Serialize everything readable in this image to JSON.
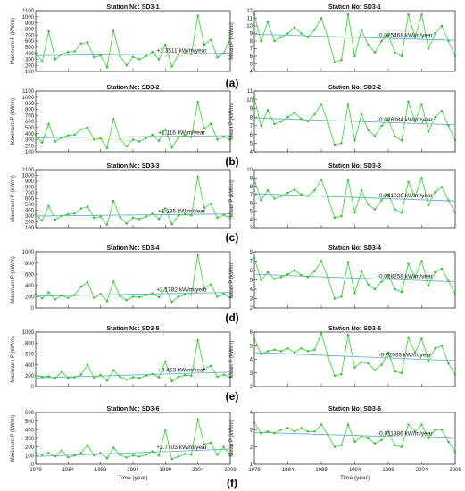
{
  "figure": {
    "panel_labels": [
      "(a)",
      "(b)",
      "(c)",
      "(d)",
      "(e)",
      "(f)"
    ]
  },
  "styles": {
    "line_color": "#3ddc3d",
    "marker_color": "#22c322",
    "trend_color": "#6aaed6",
    "axis_color": "#333333"
  },
  "chart_data": [
    {
      "type": "line",
      "panel": "(a)",
      "title": "Station No: SD3-1",
      "xlabel": "",
      "ylabel": "Maximum P (kW/m)",
      "ylim": [
        100,
        1100
      ],
      "yticks": [
        100,
        200,
        300,
        400,
        500,
        600,
        700,
        800,
        900,
        1000,
        1100
      ],
      "xlim": [
        1979,
        2009
      ],
      "x": [
        1979,
        1980,
        1981,
        1982,
        1983,
        1984,
        1985,
        1986,
        1987,
        1988,
        1989,
        1990,
        1991,
        1992,
        1993,
        1994,
        1995,
        1996,
        1997,
        1998,
        1999,
        2000,
        2001,
        2002,
        2003,
        2004,
        2005,
        2006,
        2007,
        2008,
        2009
      ],
      "series": [
        {
          "name": "",
          "values": [
            400,
            260,
            760,
            300,
            380,
            420,
            430,
            560,
            580,
            330,
            360,
            170,
            770,
            350,
            200,
            340,
            300,
            350,
            420,
            300,
            540,
            180,
            380,
            400,
            380,
            1020,
            540,
            620,
            330,
            400,
            650
          ]
        }
      ],
      "trend": {
        "label": "+1.3511 kW/m/year",
        "start": 360,
        "end": 400
      }
    },
    {
      "type": "line",
      "panel": "(a)",
      "title": "Station No: SD3-1",
      "xlabel": "",
      "ylabel": "Mean P (kW/m)",
      "ylim": [
        4,
        12
      ],
      "yticks": [
        4,
        5,
        6,
        7,
        8,
        9,
        10,
        11,
        12
      ],
      "xlim": [
        1979,
        2009
      ],
      "x": [
        1979,
        1980,
        1981,
        1982,
        1983,
        1984,
        1985,
        1986,
        1987,
        1988,
        1989,
        1990,
        1991,
        1992,
        1993,
        1994,
        1995,
        1996,
        1997,
        1998,
        1999,
        2000,
        2001,
        2002,
        2003,
        2004,
        2005,
        2006,
        2007,
        2008,
        2009
      ],
      "series": [
        {
          "name": "",
          "values": [
            11.5,
            8,
            10.5,
            8,
            8.5,
            9,
            9.8,
            9,
            8.5,
            9.5,
            11,
            8.5,
            5.2,
            5.5,
            11.5,
            6,
            9.5,
            7.5,
            6.5,
            8,
            8.8,
            6.5,
            6,
            11.5,
            8.5,
            11.5,
            7,
            9,
            10,
            8,
            6
          ]
        }
      ],
      "trend": {
        "label": "-0.025468 kW/m/year",
        "start": 8.9,
        "end": 8.1
      }
    },
    {
      "type": "line",
      "panel": "(b)",
      "title": "Station No: SD3-2",
      "xlabel": "",
      "ylabel": "Maximum P (kW/m)",
      "ylim": [
        100,
        1100
      ],
      "yticks": [
        100,
        200,
        300,
        400,
        500,
        600,
        700,
        800,
        900,
        1000,
        1100
      ],
      "xlim": [
        1979,
        2009
      ],
      "x": [
        1979,
        1980,
        1981,
        1982,
        1983,
        1984,
        1985,
        1986,
        1987,
        1988,
        1989,
        1990,
        1991,
        1992,
        1993,
        1994,
        1995,
        1996,
        1997,
        1998,
        1999,
        2000,
        2001,
        2002,
        2003,
        2004,
        2005,
        2006,
        2007,
        2008,
        2009
      ],
      "series": [
        {
          "name": "",
          "values": [
            380,
            250,
            560,
            270,
            330,
            370,
            380,
            470,
            500,
            300,
            320,
            160,
            640,
            310,
            190,
            300,
            270,
            320,
            380,
            280,
            470,
            170,
            340,
            370,
            340,
            920,
            480,
            560,
            300,
            350,
            290
          ]
        }
      ],
      "trend": {
        "label": "+1.116 kW/m/year",
        "start": 330,
        "end": 365
      }
    },
    {
      "type": "line",
      "panel": "(b)",
      "title": "Station No: SD3-2",
      "xlabel": "",
      "ylabel": "Mean P (kW/m)",
      "ylim": [
        4,
        11
      ],
      "yticks": [
        4,
        5,
        6,
        7,
        8,
        9,
        10,
        11
      ],
      "xlim": [
        1979,
        2009
      ],
      "x": [
        1979,
        1980,
        1981,
        1982,
        1983,
        1984,
        1985,
        1986,
        1987,
        1988,
        1989,
        1990,
        1991,
        1992,
        1993,
        1994,
        1995,
        1996,
        1997,
        1998,
        1999,
        2000,
        2001,
        2002,
        2003,
        2004,
        2005,
        2006,
        2007,
        2008,
        2009
      ],
      "series": [
        {
          "name": "",
          "values": [
            10.2,
            7,
            8.8,
            7.2,
            7.5,
            8,
            8.5,
            7.8,
            7.5,
            8.3,
            9.5,
            7.3,
            4.8,
            5,
            9.5,
            5.3,
            8.3,
            6.5,
            5.8,
            7,
            7.7,
            5.8,
            5.3,
            9.8,
            7.5,
            9.5,
            6.3,
            8,
            8.7,
            7,
            5.3
          ]
        }
      ],
      "trend": {
        "label": "-0.028384 kW/m/year",
        "start": 7.9,
        "end": 7.1
      }
    },
    {
      "type": "line",
      "panel": "(c)",
      "title": "Station No: SD3-3",
      "xlabel": "",
      "ylabel": "Maximum P (kW/m)",
      "ylim": [
        100,
        1100
      ],
      "yticks": [
        100,
        200,
        300,
        400,
        500,
        600,
        700,
        800,
        900,
        1000,
        1100
      ],
      "xlim": [
        1979,
        2009
      ],
      "x": [
        1979,
        1980,
        1981,
        1982,
        1983,
        1984,
        1985,
        1986,
        1987,
        1988,
        1989,
        1990,
        1991,
        1992,
        1993,
        1994,
        1995,
        1996,
        1997,
        1998,
        1999,
        2000,
        2001,
        2002,
        2003,
        2004,
        2005,
        2006,
        2007,
        2008,
        2009
      ],
      "series": [
        {
          "name": "",
          "values": [
            330,
            220,
            470,
            240,
            300,
            330,
            340,
            430,
            460,
            270,
            290,
            150,
            560,
            280,
            170,
            270,
            250,
            290,
            340,
            250,
            430,
            160,
            310,
            330,
            310,
            980,
            440,
            510,
            270,
            320,
            260
          ]
        }
      ],
      "trend": {
        "label": "+1.195 kW/m/year",
        "start": 300,
        "end": 335
      }
    },
    {
      "type": "line",
      "panel": "(c)",
      "title": "Station No: SD3-3",
      "xlabel": "",
      "ylabel": "Mean P (kW/m)",
      "ylim": [
        3,
        10
      ],
      "yticks": [
        3,
        4,
        5,
        6,
        7,
        8,
        9,
        10
      ],
      "xlim": [
        1979,
        2009
      ],
      "x": [
        1979,
        1980,
        1981,
        1982,
        1983,
        1984,
        1985,
        1986,
        1987,
        1988,
        1989,
        1990,
        1991,
        1992,
        1993,
        1994,
        1995,
        1996,
        1997,
        1998,
        1999,
        2000,
        2001,
        2002,
        2003,
        2004,
        2005,
        2006,
        2007,
        2008,
        2009
      ],
      "series": [
        {
          "name": "",
          "values": [
            8.8,
            6.3,
            7.5,
            6.5,
            6.8,
            7.2,
            7.6,
            7,
            6.8,
            7.5,
            8.8,
            6.6,
            4.2,
            4.4,
            8.8,
            4.8,
            7.5,
            5.8,
            5.2,
            6.3,
            7,
            5.2,
            4.8,
            8.5,
            6.8,
            9,
            5.7,
            7.3,
            7.9,
            6.3,
            4.8
          ]
        }
      ],
      "trend": {
        "label": "-0.031029 kW/m/year",
        "start": 7.1,
        "end": 6.2
      }
    },
    {
      "type": "line",
      "panel": "(d)",
      "title": "Station No: SD3-4",
      "xlabel": "",
      "ylabel": "Maximum P (kW/m)",
      "ylim": [
        0,
        1000
      ],
      "yticks": [
        0,
        200,
        400,
        600,
        800,
        1000
      ],
      "xlim": [
        1979,
        2009
      ],
      "x": [
        1979,
        1980,
        1981,
        1982,
        1983,
        1984,
        1985,
        1986,
        1987,
        1988,
        1989,
        1990,
        1991,
        1992,
        1993,
        1994,
        1995,
        1996,
        1997,
        1998,
        1999,
        2000,
        2001,
        2002,
        2003,
        2004,
        2005,
        2006,
        2007,
        2008,
        2009
      ],
      "series": [
        {
          "name": "",
          "values": [
            250,
            170,
            280,
            150,
            220,
            180,
            230,
            380,
            460,
            180,
            250,
            120,
            470,
            210,
            140,
            200,
            190,
            230,
            260,
            190,
            350,
            110,
            200,
            240,
            230,
            940,
            350,
            420,
            200,
            250,
            190
          ]
        }
      ],
      "trend": {
        "label": "+2.1782 kW/m/year",
        "start": 210,
        "end": 275
      }
    },
    {
      "type": "line",
      "panel": "(d)",
      "title": "Station No: SD3-4",
      "xlabel": "",
      "ylabel": "Mean P (kW/m)",
      "ylim": [
        2,
        8
      ],
      "yticks": [
        2,
        3,
        4,
        5,
        6,
        7,
        8
      ],
      "xlim": [
        1979,
        2009
      ],
      "x": [
        1979,
        1980,
        1981,
        1982,
        1983,
        1984,
        1985,
        1986,
        1987,
        1988,
        1989,
        1990,
        1991,
        1992,
        1993,
        1994,
        1995,
        1996,
        1997,
        1998,
        1999,
        2000,
        2001,
        2002,
        2003,
        2004,
        2005,
        2006,
        2007,
        2008,
        2009
      ],
      "series": [
        {
          "name": "",
          "values": [
            7.3,
            5,
            5.8,
            5.1,
            5.3,
            5.6,
            6,
            5.5,
            5.3,
            5.9,
            7,
            5.2,
            3,
            3.2,
            6.9,
            3.6,
            5.9,
            4.5,
            4,
            4.8,
            5.5,
            4,
            3.7,
            6.7,
            5.3,
            7,
            4.4,
            5.8,
            6.2,
            4.9,
            3.5
          ]
        }
      ],
      "trend": {
        "label": "-0.028258 kW/m/year",
        "start": 5.6,
        "end": 4.8
      }
    },
    {
      "type": "line",
      "panel": "(e)",
      "title": "Station No: SD3-5",
      "xlabel": "",
      "ylabel": "Maximum P (kW/m)",
      "ylim": [
        0,
        1000
      ],
      "yticks": [
        0,
        200,
        400,
        600,
        800,
        1000
      ],
      "xlim": [
        1979,
        2009
      ],
      "x": [
        1979,
        1980,
        1981,
        1982,
        1983,
        1984,
        1985,
        1986,
        1987,
        1988,
        1989,
        1990,
        1991,
        1992,
        1993,
        1994,
        1995,
        1996,
        1997,
        1998,
        1999,
        2000,
        2001,
        2002,
        2003,
        2004,
        2005,
        2006,
        2007,
        2008,
        2009
      ],
      "series": [
        {
          "name": "",
          "values": [
            200,
            180,
            190,
            150,
            270,
            160,
            170,
            220,
            400,
            160,
            210,
            110,
            300,
            180,
            130,
            170,
            160,
            200,
            230,
            170,
            460,
            100,
            180,
            210,
            200,
            850,
            320,
            380,
            180,
            220,
            170
          ]
        }
      ],
      "trend": {
        "label": "+3.453 kW/m/year",
        "start": 160,
        "end": 265
      }
    },
    {
      "type": "line",
      "panel": "(e)",
      "title": "Station No: SD3-5",
      "xlabel": "",
      "ylabel": "Mean P (kW/m)",
      "ylim": [
        2,
        6
      ],
      "yticks": [
        2,
        3,
        4,
        5,
        6
      ],
      "xlim": [
        1979,
        2009
      ],
      "x": [
        1979,
        1980,
        1981,
        1982,
        1983,
        1984,
        1985,
        1986,
        1987,
        1988,
        1989,
        1990,
        1991,
        1992,
        1993,
        1994,
        1995,
        1996,
        1997,
        1998,
        1999,
        2000,
        2001,
        2002,
        2003,
        2004,
        2005,
        2006,
        2007,
        2008,
        2009
      ],
      "series": [
        {
          "name": "",
          "values": [
            5.5,
            4.4,
            4.6,
            4.7,
            4.6,
            4.8,
            4.5,
            4.8,
            4.6,
            4.7,
            5.9,
            4.2,
            2.8,
            2.9,
            5.8,
            3.4,
            3.8,
            3.7,
            3.2,
            3.6,
            4.5,
            3.1,
            3,
            5.6,
            4.5,
            5.5,
            3.9,
            4.8,
            5,
            3.7,
            2.9
          ]
        }
      ],
      "trend": {
        "label": "-0.02033 kW/m/year",
        "start": 4.5,
        "end": 3.9
      }
    },
    {
      "type": "line",
      "panel": "(f)",
      "title": "Station No: SD3-6",
      "xlabel": "Time (year)",
      "ylabel": "Maximum P (kW/m)",
      "ylim": [
        0,
        600
      ],
      "yticks": [
        0,
        100,
        200,
        300,
        400,
        500,
        600
      ],
      "xlim": [
        1979,
        2009
      ],
      "x": [
        1979,
        1980,
        1981,
        1982,
        1983,
        1984,
        1985,
        1986,
        1987,
        1988,
        1989,
        1990,
        1991,
        1992,
        1993,
        1994,
        1995,
        1996,
        1997,
        1998,
        1999,
        2000,
        2001,
        2002,
        2003,
        2004,
        2005,
        2006,
        2007,
        2008,
        2009
      ],
      "series": [
        {
          "name": "",
          "values": [
            130,
            110,
            130,
            90,
            160,
            80,
            100,
            130,
            220,
            100,
            130,
            70,
            190,
            110,
            80,
            100,
            90,
            110,
            150,
            100,
            400,
            60,
            90,
            120,
            110,
            520,
            230,
            250,
            110,
            200,
            100
          ]
        }
      ],
      "trend": {
        "label": "+2.7703 kW/m/year",
        "start": 90,
        "end": 175
      }
    },
    {
      "type": "line",
      "panel": "(f)",
      "title": "Station No: SD3-6",
      "xlabel": "Time (year)",
      "ylabel": "Mean P (kW/m)",
      "ylim": [
        1,
        4
      ],
      "yticks": [
        1,
        2,
        3,
        4
      ],
      "xlim": [
        1979,
        2009
      ],
      "x": [
        1979,
        1980,
        1981,
        1982,
        1983,
        1984,
        1985,
        1986,
        1987,
        1988,
        1989,
        1990,
        1991,
        1992,
        1993,
        1994,
        1995,
        1996,
        1997,
        1998,
        1999,
        2000,
        2001,
        2002,
        2003,
        2004,
        2005,
        2006,
        2007,
        2008,
        2009
      ],
      "series": [
        {
          "name": "",
          "values": [
            3.4,
            2.8,
            2.9,
            2.8,
            3,
            3.1,
            2.9,
            3.1,
            2.9,
            2.9,
            3.3,
            2.7,
            2,
            2.1,
            3.3,
            2.3,
            2.6,
            2.5,
            2.2,
            2.4,
            2.9,
            2.1,
            2,
            3.3,
            2.9,
            3.3,
            2.5,
            3,
            3,
            2.3,
            1.7
          ]
        }
      ],
      "trend": {
        "label": "-0.011386 kW/m/year",
        "start": 2.85,
        "end": 2.5
      }
    }
  ],
  "xticks": [
    1979,
    1984,
    1989,
    1994,
    1999,
    2004,
    2009
  ]
}
